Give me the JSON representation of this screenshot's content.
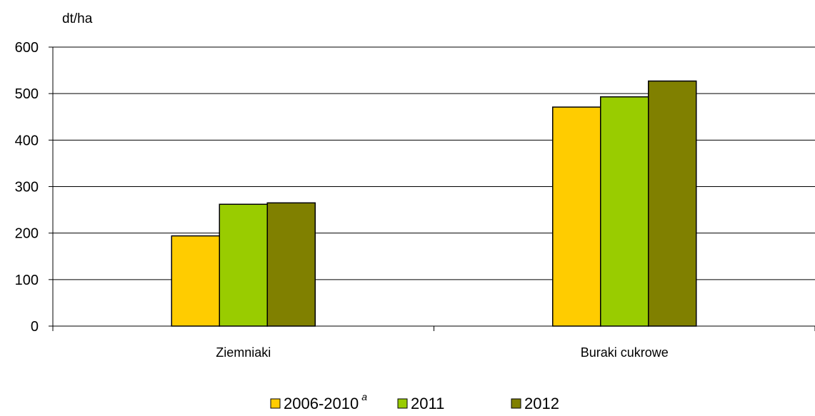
{
  "chart_data": {
    "type": "bar",
    "title": "",
    "xlabel": "",
    "ylabel": "dt/ha",
    "ylim": [
      0,
      600
    ],
    "yticks": [
      0,
      100,
      200,
      300,
      400,
      500,
      600
    ],
    "grid": true,
    "legend_position": "bottom-center",
    "categories": [
      "Ziemniaki",
      "Buraki cukrowe"
    ],
    "series": [
      {
        "name": "2006-2010",
        "superscript": "a",
        "color": "#FFCC00",
        "values": [
          194,
          471
        ]
      },
      {
        "name": "2011",
        "color": "#99CC00",
        "values": [
          262,
          493
        ]
      },
      {
        "name": "2012",
        "color": "#808000",
        "values": [
          265,
          527
        ]
      }
    ]
  }
}
